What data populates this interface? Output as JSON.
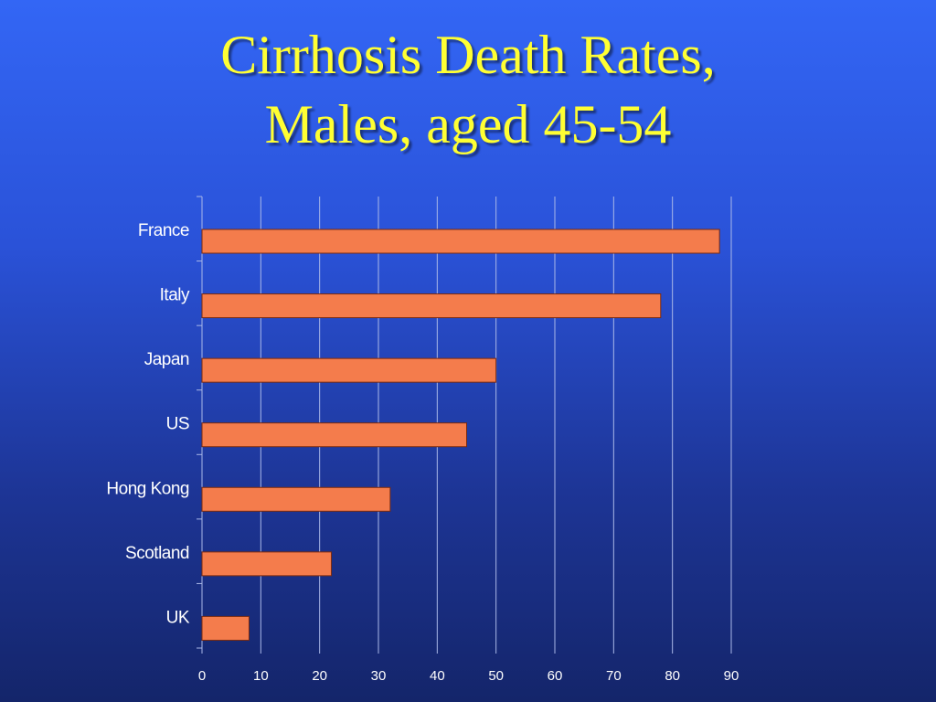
{
  "slide": {
    "title_line1": "Cirrhosis Death Rates,",
    "title_line2": "Males, aged 45-54"
  },
  "colors": {
    "bar_fill": "#f47c4c",
    "bar_stroke": "#7a2a10",
    "grid": "#aab8e8",
    "title": "#ffff33"
  },
  "chart_data": {
    "type": "bar",
    "orientation": "horizontal",
    "title": "Cirrhosis Death Rates, Males, aged 45-54",
    "categories": [
      "France",
      "Italy",
      "Japan",
      "US",
      "Hong Kong",
      "Scotland",
      "UK"
    ],
    "values": [
      88,
      78,
      50,
      45,
      32,
      22,
      8
    ],
    "xlim": [
      0,
      90
    ],
    "xticks": [
      0,
      10,
      20,
      30,
      40,
      50,
      60,
      70,
      80,
      90
    ],
    "xlabel": "",
    "ylabel": "",
    "grid": "vertical",
    "legend": "none"
  }
}
